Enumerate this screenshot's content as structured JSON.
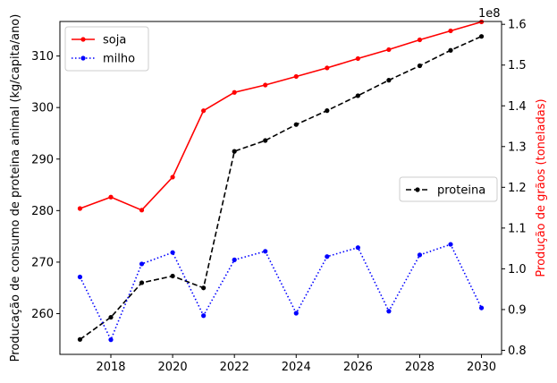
{
  "chart_data": {
    "type": "line",
    "x": [
      2017,
      2018,
      2019,
      2020,
      2021,
      2022,
      2023,
      2024,
      2025,
      2026,
      2027,
      2028,
      2029,
      2030
    ],
    "x_ticks": [
      2018,
      2020,
      2022,
      2024,
      2026,
      2028,
      2030
    ],
    "xlim": [
      2016.35,
      2030.65
    ],
    "left_axis": {
      "label": "Producação de consumo de proteina animal (kg/capita/ano)",
      "ylim": [
        252.1,
        316.7
      ],
      "ticks": [
        260,
        270,
        280,
        290,
        300,
        310
      ]
    },
    "right_axis": {
      "label": "Produção de grãos (toneladas)",
      "label_color": "#ff0000",
      "multiplier": "1e8",
      "ylim": [
        0.79,
        1.607
      ],
      "ticks": [
        0.8,
        0.9,
        1.0,
        1.1,
        1.2,
        1.3,
        1.4,
        1.5,
        1.6
      ],
      "tick_labels": [
        "0.8",
        "0.9",
        "1.0",
        "1.1",
        "1.2",
        "1.3",
        "1.4",
        "1.5",
        "1.6"
      ]
    },
    "series": [
      {
        "name": "proteina",
        "axis": "left",
        "color": "#000000",
        "style": "dashed",
        "values": [
          255.0,
          259.3,
          266.0,
          267.3,
          265.0,
          291.5,
          293.6,
          296.7,
          299.4,
          302.3,
          305.3,
          308.1,
          311.1,
          313.8
        ]
      },
      {
        "name": "soja",
        "axis": "right",
        "color": "#ff0000",
        "style": "solid",
        "values": [
          1.148,
          1.176,
          1.144,
          1.225,
          1.388,
          1.433,
          1.451,
          1.472,
          1.493,
          1.516,
          1.538,
          1.562,
          1.584,
          1.606
        ]
      },
      {
        "name": "milho",
        "axis": "right",
        "color": "#0000ff",
        "style": "dotted",
        "values": [
          0.98,
          0.826,
          1.012,
          1.04,
          0.885,
          1.022,
          1.043,
          0.891,
          1.03,
          1.052,
          0.896,
          1.034,
          1.06,
          0.904
        ]
      }
    ],
    "legends": [
      {
        "placement": "upper-left",
        "entries": [
          "soja",
          "milho"
        ]
      },
      {
        "placement": "center-right",
        "entries": [
          "proteina"
        ]
      }
    ]
  }
}
